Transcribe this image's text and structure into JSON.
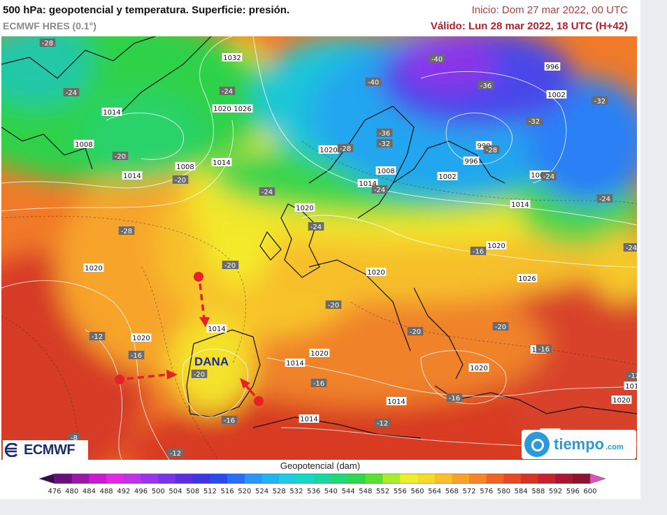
{
  "header": {
    "title": "500 hPa: geopotencial y temperatura. Superficie: presión.",
    "model": "ECMWF HRES (0.1°)",
    "init": "Inicio: Dom 27 mar 2022, 00 UTC",
    "valid": "Válido: Lun 28 mar 2022, 18 UTC (H+42)"
  },
  "annotation": {
    "label": "DANA",
    "arrow_color": "#e8202a",
    "text_color": "#1a2a9c"
  },
  "logos": {
    "left": "ECMWF",
    "right": "tiempo",
    "right_suffix": ".com"
  },
  "legend": {
    "title": "Geopotencial (dam)",
    "ticks": [
      "476",
      "480",
      "484",
      "488",
      "492",
      "496",
      "500",
      "504",
      "508",
      "512",
      "516",
      "520",
      "524",
      "528",
      "532",
      "536",
      "540",
      "544",
      "548",
      "552",
      "556",
      "560",
      "564",
      "568",
      "572",
      "576",
      "580",
      "584",
      "588",
      "592",
      "596",
      "600"
    ],
    "colors": [
      "#3a0a4a",
      "#6a0e7e",
      "#9a18a8",
      "#c81cd0",
      "#e02ae2",
      "#c032e8",
      "#9c34ea",
      "#7a34e8",
      "#5c2ee0",
      "#3c36e0",
      "#2a4af0",
      "#2a6ef6",
      "#2a96f6",
      "#22b4f0",
      "#1ccce4",
      "#16d8c6",
      "#18d8a0",
      "#20d878",
      "#2ed84e",
      "#5ae030",
      "#a8ec2e",
      "#f0f02a",
      "#f6dc2a",
      "#f8c02a",
      "#f8a22a",
      "#f68428",
      "#ee6424",
      "#e44a24",
      "#d63426",
      "#c42430",
      "#a8182e",
      "#8c1430",
      "#e052b8"
    ]
  },
  "isobars": [
    {
      "text": "1032"
    },
    {
      "text": "1020"
    },
    {
      "text": "1026"
    },
    {
      "text": "1014"
    },
    {
      "text": "1008"
    },
    {
      "text": "1014"
    },
    {
      "text": "1014"
    },
    {
      "text": "1008"
    },
    {
      "text": "1020"
    },
    {
      "text": "1020"
    },
    {
      "text": "1008"
    },
    {
      "text": "1014"
    },
    {
      "text": "1002"
    },
    {
      "text": "996"
    },
    {
      "text": "990"
    },
    {
      "text": "996"
    },
    {
      "text": "1002"
    },
    {
      "text": "1008"
    },
    {
      "text": "1014"
    },
    {
      "text": "1020"
    },
    {
      "text": "1020"
    },
    {
      "text": "1026"
    },
    {
      "text": "1020"
    },
    {
      "text": "1020"
    },
    {
      "text": "1014"
    },
    {
      "text": "1020"
    },
    {
      "text": "1014"
    },
    {
      "text": "1020"
    },
    {
      "text": "1014"
    },
    {
      "text": "1014"
    },
    {
      "text": "1020"
    },
    {
      "text": "1014"
    },
    {
      "text": "102"
    },
    {
      "text": "1020"
    }
  ],
  "temperatures": [
    {
      "text": "-28"
    },
    {
      "text": "-24"
    },
    {
      "text": "-24"
    },
    {
      "text": "-20"
    },
    {
      "text": "-20"
    },
    {
      "text": "-24"
    },
    {
      "text": "-24"
    },
    {
      "text": "-40"
    },
    {
      "text": "-40"
    },
    {
      "text": "-36"
    },
    {
      "text": "-36"
    },
    {
      "text": "-32"
    },
    {
      "text": "-32"
    },
    {
      "text": "-36"
    },
    {
      "text": "-28"
    },
    {
      "text": "-28"
    },
    {
      "text": "-24"
    },
    {
      "text": "-24"
    },
    {
      "text": "-24"
    },
    {
      "text": "-28"
    },
    {
      "text": "-24"
    },
    {
      "text": "-16"
    },
    {
      "text": "-20"
    },
    {
      "text": "-20"
    },
    {
      "text": "-20"
    },
    {
      "text": "-20"
    },
    {
      "text": "-20"
    },
    {
      "text": "-12"
    },
    {
      "text": "-16"
    },
    {
      "text": "-20"
    },
    {
      "text": "-16"
    },
    {
      "text": "-16"
    },
    {
      "text": "-12"
    },
    {
      "text": "-16"
    },
    {
      "text": "-12"
    },
    {
      "text": "-8"
    },
    {
      "text": "-12"
    },
    {
      "text": "-16"
    },
    {
      "text": "-12"
    },
    {
      "text": "-32"
    }
  ]
}
